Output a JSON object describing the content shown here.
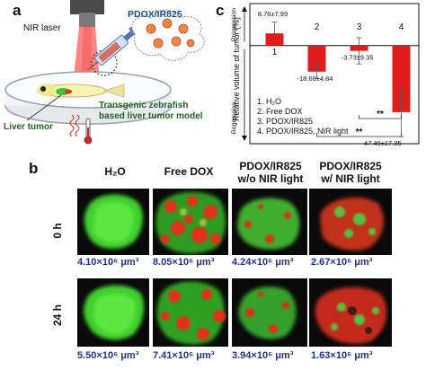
{
  "panel_a": {
    "letter": "a",
    "labels": {
      "nir_laser": "NIR laser",
      "drug": "PDOX/IR825",
      "model": "Transgenic zebrafish based liver tumor model",
      "liver_tumor": "Liver tumor"
    }
  },
  "panel_b": {
    "letter": "b",
    "columns": [
      {
        "line1": "H₂O",
        "line2": ""
      },
      {
        "line1": "Free DOX",
        "line2": ""
      },
      {
        "line1": "PDOX/IR825",
        "line2": "w/o NIR light"
      },
      {
        "line1": "PDOX/IR825",
        "line2": "w/ NIR light"
      }
    ],
    "rows": [
      {
        "label": "0 h",
        "volumes": [
          "4.10×10⁶ μm³",
          "8.05×10⁶ μm³",
          "4.24×10⁶ μm³",
          "2.67×10⁶ μm³"
        ]
      },
      {
        "label": "24 h",
        "volumes": [
          "5.50×10⁶ μm³",
          "7.41×10⁶ μm³",
          "3.94×10⁶ μm³",
          "1.63×10⁶ μm³"
        ]
      }
    ],
    "colors": {
      "tumor_green": "#4fe03a",
      "dox_red": "#e0321e",
      "background": "#0a0a0a"
    }
  },
  "chart_data": {
    "type": "bar",
    "panel_letter": "c",
    "ylabel": "Relative volume of tumor (%)",
    "ylabel_upper": "Progression",
    "ylabel_lower": "Regression",
    "ylim": [
      -70,
      30
    ],
    "categories": [
      "1",
      "2",
      "3",
      "4"
    ],
    "values": [
      8.76,
      -18.6,
      -3.73,
      -47.49
    ],
    "errors": [
      7.99,
      4.84,
      9.35,
      17.35
    ],
    "value_labels": [
      "8.76±7.99",
      "-18.60±4.84",
      "-3.73±9.35",
      "-47.49±17.35"
    ],
    "legend": [
      "1. H₂O",
      "2. Free DOX",
      "3. PDOX/IR825",
      "4. PDOX/IR825,  NIR light"
    ],
    "significance": [
      {
        "from": "2",
        "to": "4",
        "label": "**"
      },
      {
        "from": "3",
        "to": "4",
        "label": "**"
      }
    ],
    "bar_color": "#e11c1c",
    "grid": false
  }
}
